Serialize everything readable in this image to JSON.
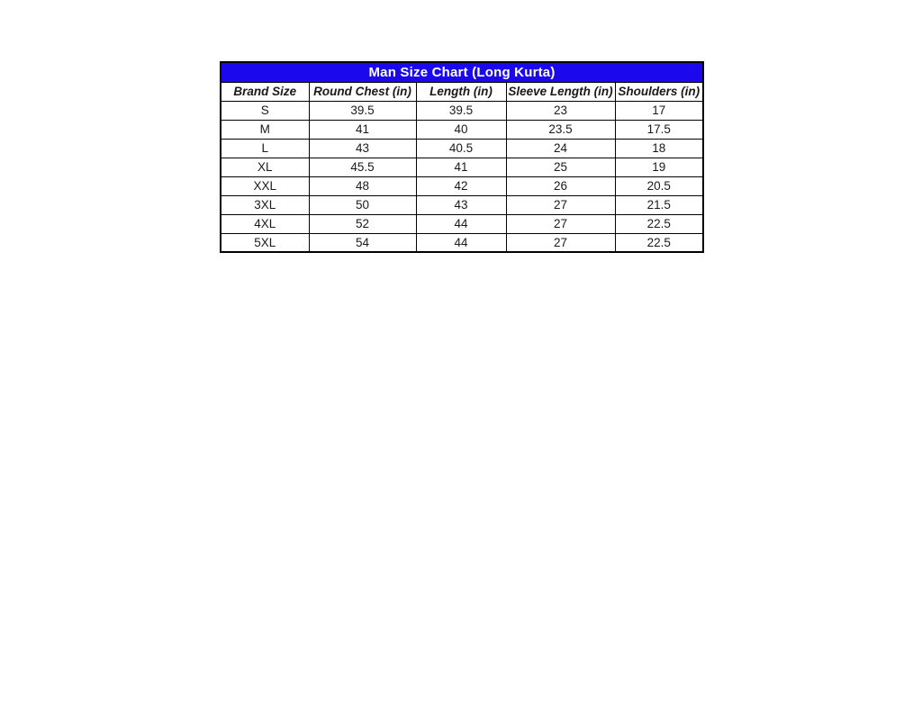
{
  "colors": {
    "title_background": "#1b08ed",
    "title_text": "#ffffff",
    "table_border": "#000000",
    "cell_text": "#1a1a1a",
    "page_background": "#ffffff"
  },
  "chart_data": {
    "type": "table",
    "title": "Man Size Chart (Long Kurta)",
    "columns": [
      "Brand Size",
      "Round Chest (in)",
      "Length (in)",
      "Sleeve Length (in)",
      "Shoulders (in)"
    ],
    "rows": [
      [
        "S",
        "39.5",
        "39.5",
        "23",
        "17"
      ],
      [
        "M",
        "41",
        "40",
        "23.5",
        "17.5"
      ],
      [
        "L",
        "43",
        "40.5",
        "24",
        "18"
      ],
      [
        "XL",
        "45.5",
        "41",
        "25",
        "19"
      ],
      [
        "XXL",
        "48",
        "42",
        "26",
        "20.5"
      ],
      [
        "3XL",
        "50",
        "43",
        "27",
        "21.5"
      ],
      [
        "4XL",
        "52",
        "44",
        "27",
        "22.5"
      ],
      [
        "5XL",
        "54",
        "44",
        "27",
        "22.5"
      ]
    ]
  }
}
